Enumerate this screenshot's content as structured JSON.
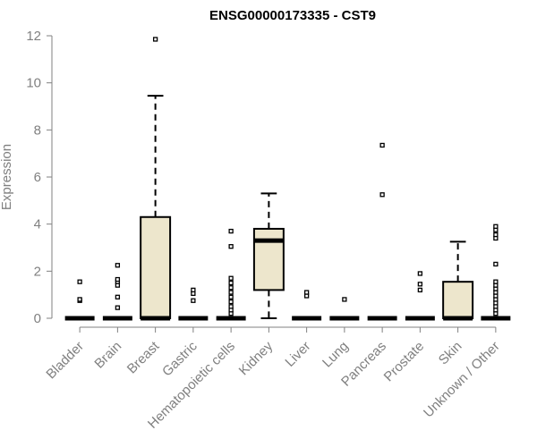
{
  "chart_data": {
    "type": "box",
    "title": "ENSG00000173335 - CST9",
    "xlabel": "",
    "ylabel": "Expression",
    "ylim": [
      0,
      12
    ],
    "yticks": [
      0,
      2,
      4,
      6,
      8,
      10,
      12
    ],
    "colors": {
      "box_fill": "#ede6cc",
      "stroke": "#000000",
      "axis": "#808080"
    },
    "categories": [
      "Bladder",
      "Brain",
      "Breast",
      "Gastric",
      "Hematopoietic cells",
      "Kidney",
      "Liver",
      "Lung",
      "Pancreas",
      "Prostate",
      "Skin",
      "Unknown / Other"
    ],
    "boxes": [
      {
        "min": 0,
        "q1": 0,
        "median": 0,
        "q3": 0,
        "max": 0,
        "outliers": [
          0.75,
          0.8,
          1.55
        ]
      },
      {
        "min": 0,
        "q1": 0,
        "median": 0,
        "q3": 0,
        "max": 0,
        "outliers": [
          0.45,
          0.9,
          1.4,
          1.55,
          1.65,
          2.25
        ]
      },
      {
        "min": 0,
        "q1": 0,
        "median": 0,
        "q3": 4.3,
        "max": 9.45,
        "outliers": [
          11.85
        ]
      },
      {
        "min": 0,
        "q1": 0,
        "median": 0,
        "q3": 0,
        "max": 0,
        "outliers": [
          0.75,
          1.05,
          1.2
        ]
      },
      {
        "min": 0,
        "q1": 0,
        "median": 0,
        "q3": 0,
        "max": 0,
        "outliers": [
          0.2,
          0.35,
          0.5,
          0.7,
          0.9,
          1.1,
          1.3,
          1.5,
          1.7,
          3.05,
          3.7
        ]
      },
      {
        "min": 0,
        "q1": 1.2,
        "median": 3.3,
        "q3": 3.8,
        "max": 5.3,
        "outliers": []
      },
      {
        "min": 0,
        "q1": 0,
        "median": 0,
        "q3": 0,
        "max": 0,
        "outliers": [
          0.95,
          1.1
        ]
      },
      {
        "min": 0,
        "q1": 0,
        "median": 0,
        "q3": 0,
        "max": 0,
        "outliers": [
          0.8
        ]
      },
      {
        "min": 0,
        "q1": 0,
        "median": 0,
        "q3": 0,
        "max": 0,
        "outliers": [
          5.25,
          7.35
        ]
      },
      {
        "min": 0,
        "q1": 0,
        "median": 0,
        "q3": 0,
        "max": 0,
        "outliers": [
          1.2,
          1.45,
          1.9
        ]
      },
      {
        "min": 0,
        "q1": 0,
        "median": 0,
        "q3": 1.55,
        "max": 3.25,
        "outliers": []
      },
      {
        "min": 0,
        "q1": 0,
        "median": 0,
        "q3": 0,
        "max": 0,
        "outliers": [
          0.2,
          0.35,
          0.5,
          0.65,
          0.8,
          0.95,
          1.1,
          1.25,
          1.4,
          1.55,
          2.3,
          3.4,
          3.55,
          3.75,
          3.9
        ]
      }
    ]
  }
}
